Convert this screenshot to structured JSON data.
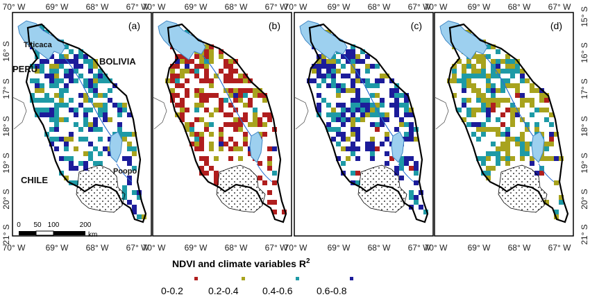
{
  "figure": {
    "top_longitudes": [
      "70° W",
      "69° W",
      "68° W",
      "67° W"
    ],
    "bottom_longitudes": [
      "70° W",
      "69° W",
      "68° W",
      "67° W"
    ],
    "left_latitudes": [
      "16° S",
      "17° S",
      "18° S",
      "19° S",
      "20° S",
      "21° S"
    ],
    "right_latitudes": [
      "15° S",
      "16° S",
      "17° S",
      "18° S",
      "19° S",
      "20° S",
      "21° S"
    ],
    "panels": [
      {
        "letter": "(a)"
      },
      {
        "letter": "(b)"
      },
      {
        "letter": "(c)"
      },
      {
        "letter": "(d)"
      }
    ],
    "place_names": {
      "titicaca": "Titicaca",
      "bolivia": "BOLIVIA",
      "peru": "PERU",
      "chile": "CHILE",
      "poopo": "Poopo"
    },
    "scale_bar": {
      "ticks": [
        "0",
        "50",
        "100",
        "200"
      ],
      "unit": "km"
    }
  },
  "legend": {
    "title": "NDVI and climate variables R",
    "title_superscript": "2",
    "classes": [
      {
        "label": "0-0.2",
        "color": "#b01e1e"
      },
      {
        "label": "0.2-0.4",
        "color": "#a8a31e"
      },
      {
        "label": "0.4-0.6",
        "color": "#1e9aa6"
      },
      {
        "label": "0.6-0.8",
        "color": "#1c1c9a"
      }
    ]
  },
  "colors": {
    "lake": "#9dd0ef",
    "lake_edge": "#3f86c4",
    "river": "#2c6fd1",
    "border": "#000000"
  }
}
